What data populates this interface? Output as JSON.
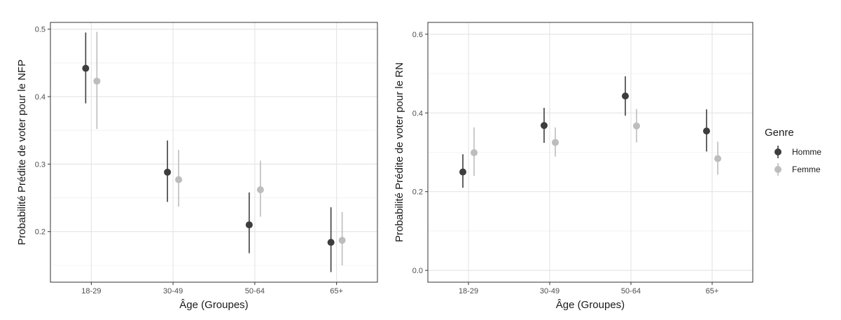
{
  "chart_data": [
    {
      "type": "scatter",
      "title": "",
      "xlabel": "Âge (Groupes)",
      "ylabel": "Probabilité Prédite de voter pour le NFP",
      "categories": [
        "18-29",
        "30-49",
        "50-64",
        "65+"
      ],
      "ylim": [
        0.125,
        0.51
      ],
      "yticks": [
        0.2,
        0.3,
        0.4,
        0.5
      ],
      "ytick_labels": [
        "0.2",
        "0.3",
        "0.4",
        "0.5"
      ],
      "grid": true,
      "series": [
        {
          "name": "Homme",
          "color": "#3d3d3d",
          "values": [
            0.442,
            0.288,
            0.21,
            0.184
          ],
          "lower": [
            0.39,
            0.244,
            0.168,
            0.14
          ],
          "upper": [
            0.495,
            0.335,
            0.258,
            0.236
          ]
        },
        {
          "name": "Femme",
          "color": "#bdbdbd",
          "values": [
            0.423,
            0.277,
            0.262,
            0.187
          ],
          "lower": [
            0.352,
            0.237,
            0.222,
            0.15
          ],
          "upper": [
            0.496,
            0.321,
            0.305,
            0.229
          ]
        }
      ]
    },
    {
      "type": "scatter",
      "title": "",
      "xlabel": "Âge (Groupes)",
      "ylabel": "Probabilité Prédite de voter pour le RN",
      "categories": [
        "18-29",
        "30-49",
        "50-64",
        "65+"
      ],
      "ylim": [
        -0.03,
        0.63
      ],
      "yticks": [
        0.0,
        0.2,
        0.4,
        0.6
      ],
      "ytick_labels": [
        "0.0",
        "0.2",
        "0.4",
        "0.6"
      ],
      "grid": true,
      "series": [
        {
          "name": "Homme",
          "color": "#3d3d3d",
          "values": [
            0.25,
            0.368,
            0.443,
            0.354
          ],
          "lower": [
            0.21,
            0.324,
            0.393,
            0.302
          ],
          "upper": [
            0.295,
            0.413,
            0.493,
            0.409
          ]
        },
        {
          "name": "Femme",
          "color": "#bdbdbd",
          "values": [
            0.299,
            0.325,
            0.367,
            0.284
          ],
          "lower": [
            0.24,
            0.289,
            0.325,
            0.243
          ],
          "upper": [
            0.363,
            0.363,
            0.41,
            0.327
          ]
        }
      ]
    }
  ],
  "legend": {
    "title": "Genre",
    "position": "right",
    "items": [
      {
        "label": "Homme",
        "color": "#3d3d3d"
      },
      {
        "label": "Femme",
        "color": "#bdbdbd"
      }
    ]
  }
}
